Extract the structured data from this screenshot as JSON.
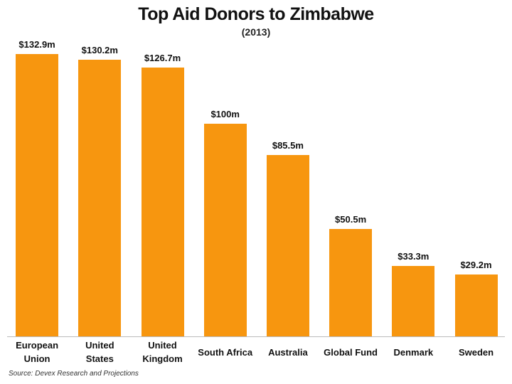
{
  "chart_data": {
    "type": "bar",
    "title": "Top Aid Donors to Zimbabwe",
    "subtitle": "(2013)",
    "categories": [
      "European Union",
      "United States",
      "United Kingdom",
      "South Africa",
      "Australia",
      "Global Fund",
      "Denmark",
      "Sweden"
    ],
    "values": [
      132.9,
      130.2,
      126.7,
      100,
      85.5,
      50.5,
      33.3,
      29.2
    ],
    "value_labels": [
      "$132.9m",
      "$130.2m",
      "$126.7m",
      "$100m",
      "$85.5m",
      "$50.5m",
      "$33.3m",
      "$29.2m"
    ],
    "color": "#f7960f",
    "source": "Source: Devex Research and Projections"
  }
}
